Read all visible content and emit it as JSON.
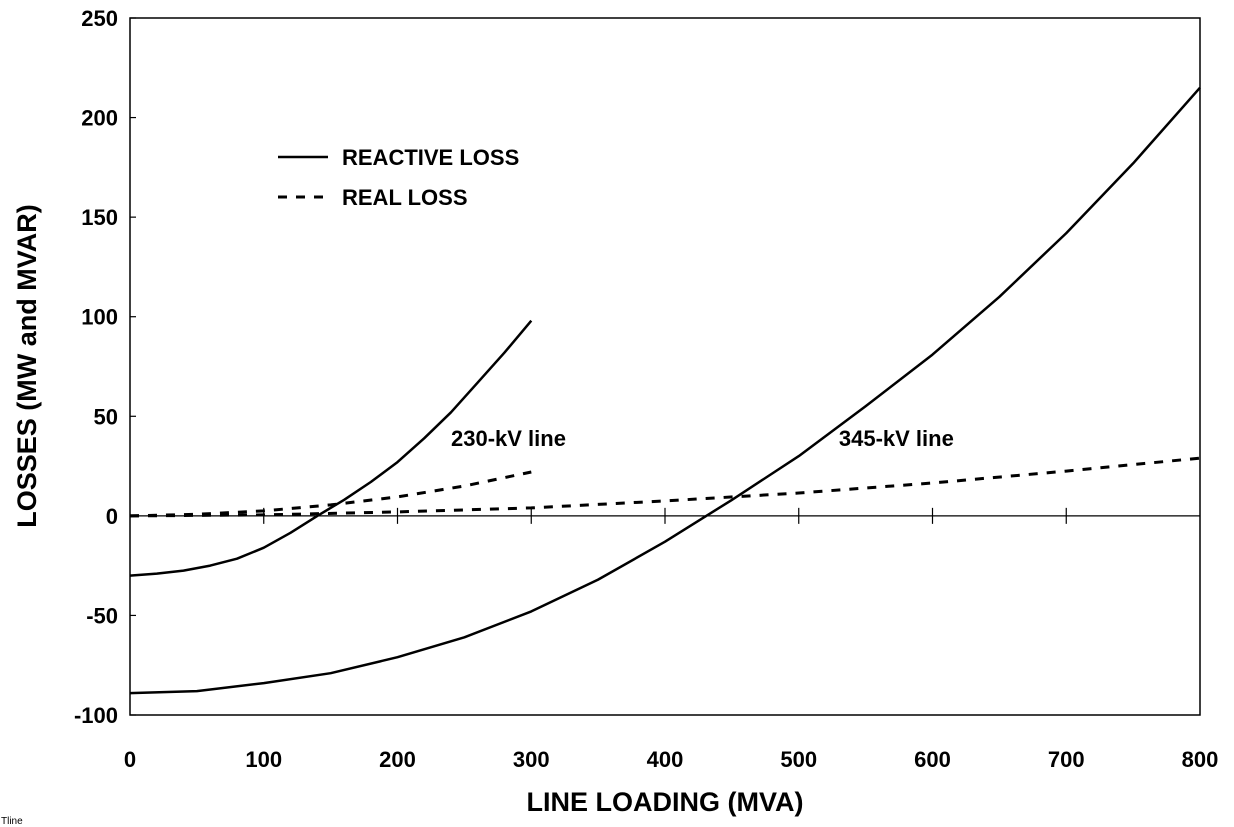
{
  "chart_data": {
    "type": "line",
    "title": "",
    "xlabel": "LINE LOADING (MVA)",
    "ylabel": "LOSSES (MW and MVAR)",
    "xlim": [
      0,
      800
    ],
    "ylim": [
      -100,
      250
    ],
    "x_ticks": [
      0,
      100,
      200,
      300,
      400,
      500,
      600,
      700,
      800
    ],
    "y_ticks": [
      -100,
      -50,
      0,
      50,
      100,
      150,
      200,
      250
    ],
    "grid": false,
    "legend": {
      "placement": "top-left",
      "entries": [
        {
          "label": "REACTIVE LOSS",
          "style": "solid"
        },
        {
          "label": "REAL LOSS",
          "style": "dashed"
        }
      ]
    },
    "annotations": [
      {
        "text": "230-kV line",
        "x": 240,
        "y": 35
      },
      {
        "text": "345-kV line",
        "x": 530,
        "y": 35
      }
    ],
    "corner_label": "Tline",
    "series": [
      {
        "group": "230-kV line",
        "kind": "reactive",
        "style": "solid",
        "color": "#000000",
        "x": [
          0,
          20,
          40,
          60,
          80,
          100,
          120,
          140,
          160,
          180,
          200,
          220,
          240,
          260,
          280,
          300
        ],
        "y": [
          -30,
          -29,
          -27.5,
          -25,
          -21.5,
          -16,
          -8.5,
          0,
          8,
          17,
          27,
          39,
          52,
          67,
          82,
          98
        ]
      },
      {
        "group": "230-kV line",
        "kind": "real",
        "style": "dashed",
        "color": "#000000",
        "x": [
          0,
          50,
          100,
          150,
          200,
          250,
          300
        ],
        "y": [
          0,
          0.8,
          2.5,
          5.5,
          9.5,
          15,
          22
        ]
      },
      {
        "group": "345-kV line",
        "kind": "reactive",
        "style": "solid",
        "color": "#000000",
        "x": [
          0,
          50,
          100,
          150,
          200,
          250,
          300,
          350,
          400,
          450,
          500,
          550,
          600,
          650,
          700,
          750,
          800
        ],
        "y": [
          -89,
          -88,
          -84,
          -79,
          -71,
          -61,
          -48,
          -32,
          -13,
          8,
          30,
          55,
          81,
          110,
          142,
          177,
          215
        ]
      },
      {
        "group": "345-kV line",
        "kind": "real",
        "style": "dashed",
        "color": "#000000",
        "x": [
          0,
          100,
          200,
          300,
          400,
          500,
          600,
          700,
          800
        ],
        "y": [
          0,
          0.5,
          2,
          4,
          7.5,
          11.5,
          16.5,
          22.5,
          29
        ]
      }
    ]
  }
}
